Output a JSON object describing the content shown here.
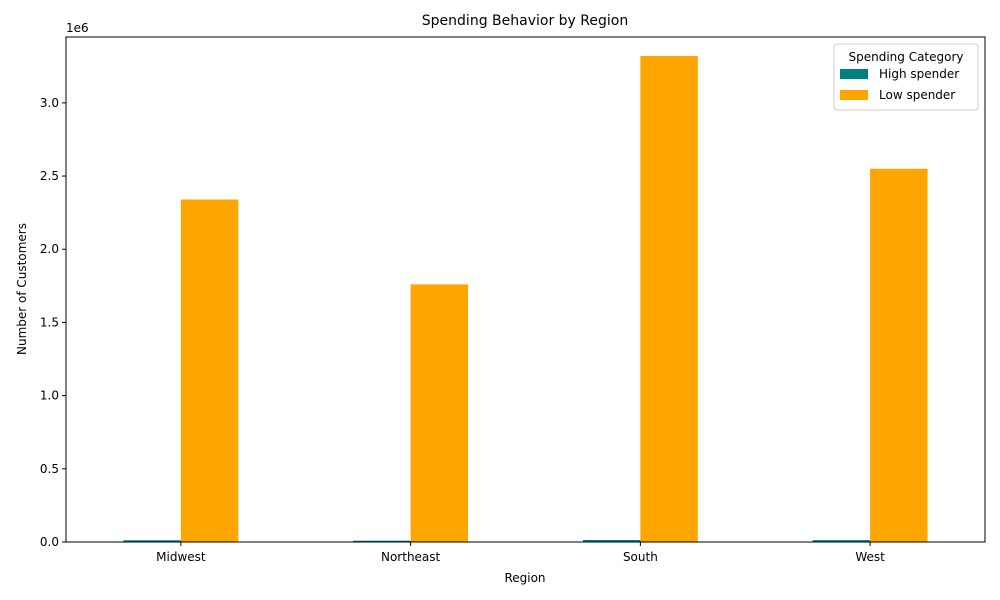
{
  "chart_data": {
    "type": "bar",
    "title": "Spending Behavior by Region",
    "xlabel": "Region",
    "ylabel": "Number of Customers",
    "y_scale_label": "1e6",
    "categories": [
      "Midwest",
      "Northeast",
      "South",
      "West"
    ],
    "series": [
      {
        "name": "High spender",
        "color": "#008080",
        "values": [
          12000,
          9000,
          14000,
          13000
        ]
      },
      {
        "name": "Low spender",
        "color": "#FFA500",
        "values": [
          2340000,
          1760000,
          3320000,
          2550000
        ]
      }
    ],
    "ylim": [
      0,
      3450000
    ],
    "y_ticks": [
      0,
      500000,
      1000000,
      1500000,
      2000000,
      2500000,
      3000000
    ],
    "y_tick_labels": [
      "0.0",
      "0.5",
      "1.0",
      "1.5",
      "2.0",
      "2.5",
      "3.0"
    ],
    "grid": false,
    "legend": {
      "title": "Spending Category",
      "placement": "top-right"
    }
  }
}
